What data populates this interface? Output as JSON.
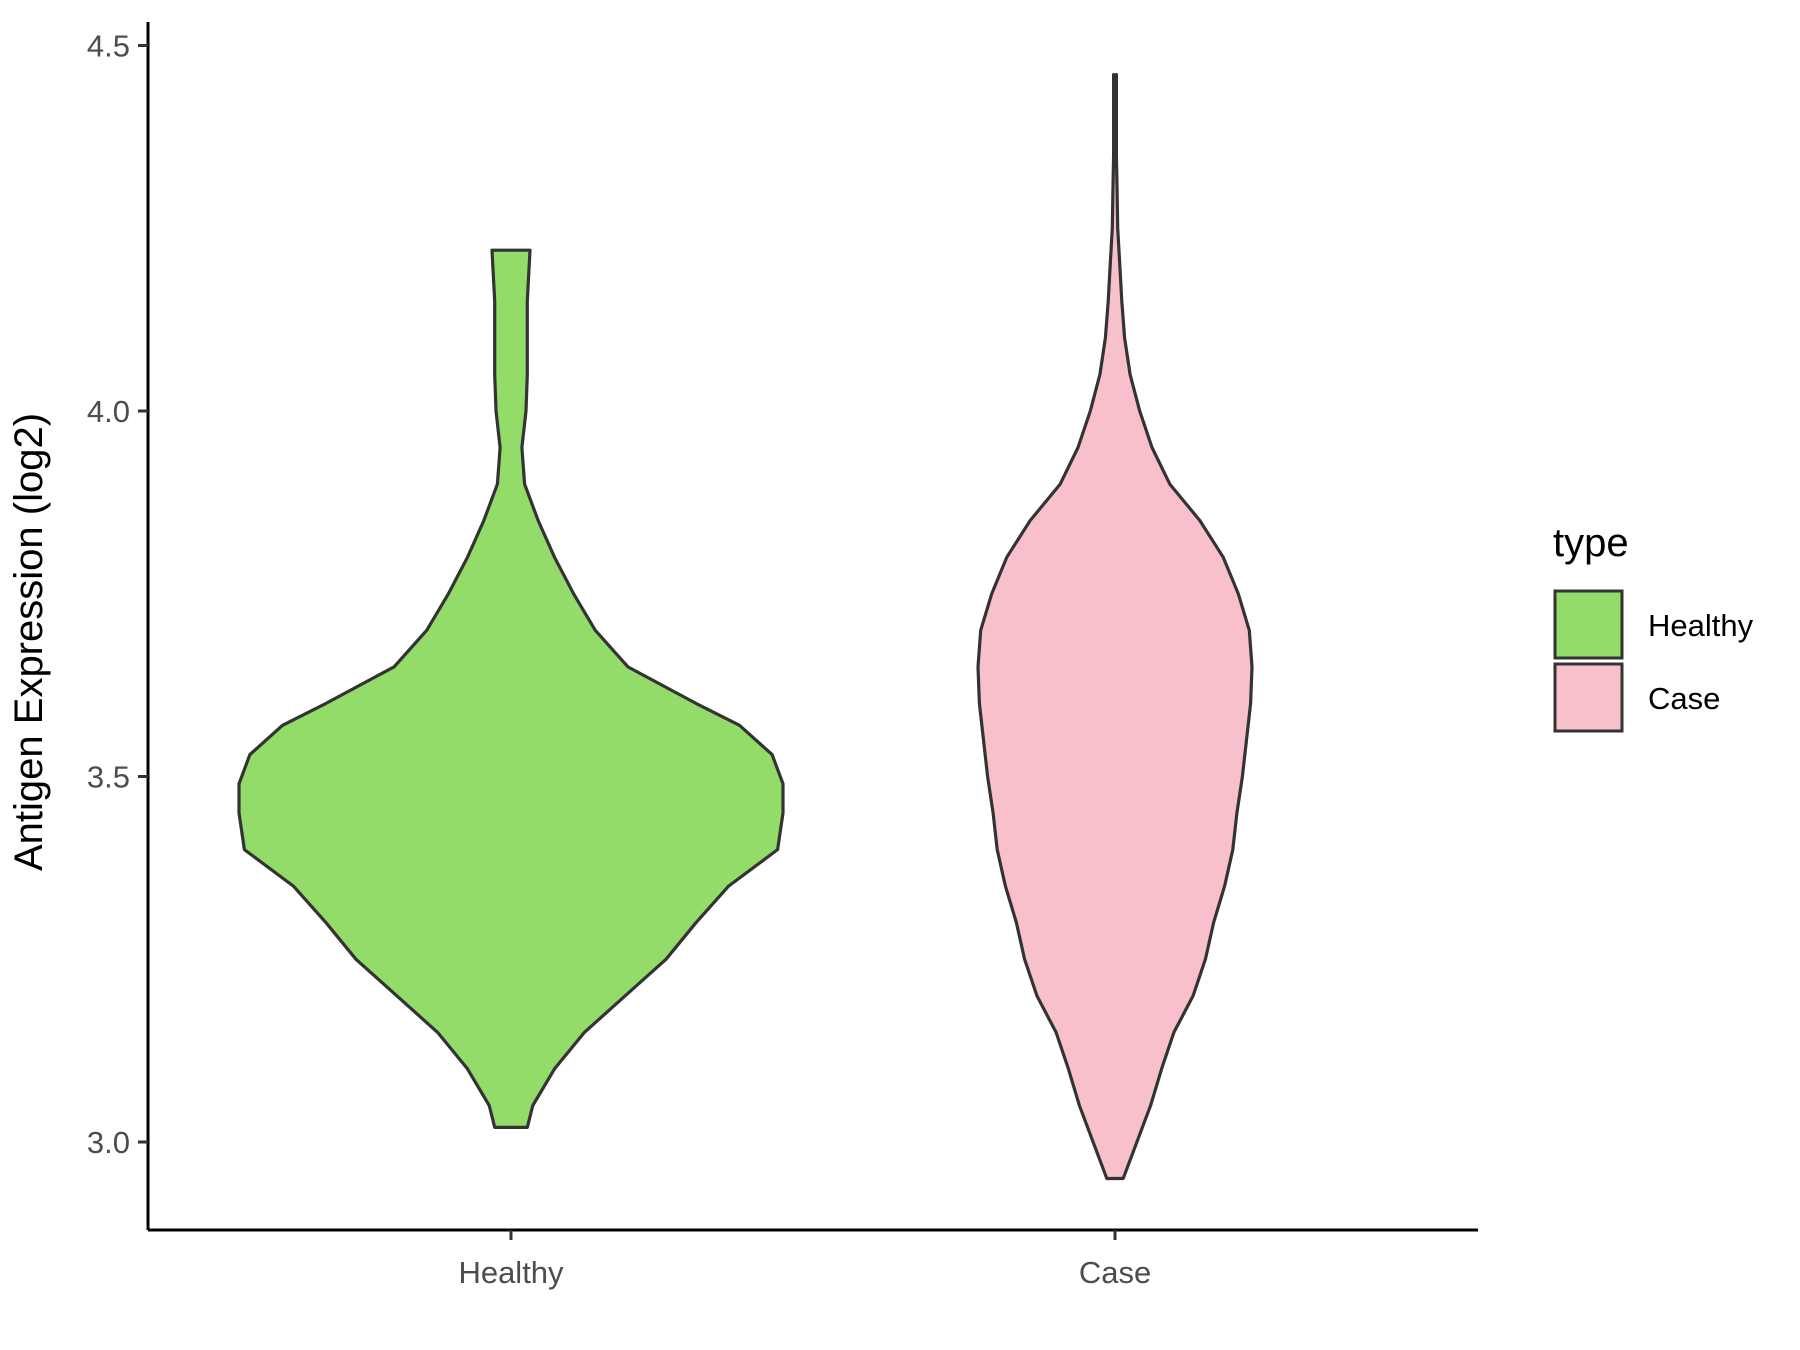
{
  "chart_data": {
    "type": "violin",
    "ylabel": "Antigen Expression (log2)",
    "xlabel": "",
    "categories": [
      "Healthy",
      "Case"
    ],
    "y_ticks": [
      "3.0",
      "3.5",
      "4.0",
      "4.5"
    ],
    "ylim": [
      2.9,
      4.53
    ],
    "legend": {
      "title": "type",
      "placement": "right",
      "entries": [
        "Healthy",
        "Case"
      ]
    },
    "grid": false,
    "series": [
      {
        "name": "Healthy",
        "color": "#93dc6a",
        "min": 3.02,
        "max": 4.22,
        "density": [
          [
            3.02,
            0.06
          ],
          [
            3.05,
            0.08
          ],
          [
            3.1,
            0.16
          ],
          [
            3.15,
            0.27
          ],
          [
            3.2,
            0.42
          ],
          [
            3.25,
            0.57
          ],
          [
            3.3,
            0.68
          ],
          [
            3.35,
            0.8
          ],
          [
            3.4,
            0.98
          ],
          [
            3.45,
            1.0
          ],
          [
            3.49,
            1.0
          ],
          [
            3.53,
            0.96
          ],
          [
            3.57,
            0.84
          ],
          [
            3.6,
            0.68
          ],
          [
            3.65,
            0.43
          ],
          [
            3.7,
            0.31
          ],
          [
            3.75,
            0.23
          ],
          [
            3.8,
            0.16
          ],
          [
            3.85,
            0.1
          ],
          [
            3.9,
            0.05
          ],
          [
            3.95,
            0.04
          ],
          [
            4.0,
            0.055
          ],
          [
            4.05,
            0.06
          ],
          [
            4.1,
            0.06
          ],
          [
            4.15,
            0.06
          ],
          [
            4.22,
            0.07
          ]
        ]
      },
      {
        "name": "Case",
        "color": "#f8c0cb",
        "min": 2.95,
        "max": 4.46,
        "density": [
          [
            2.95,
            0.06
          ],
          [
            3.0,
            0.16
          ],
          [
            3.05,
            0.26
          ],
          [
            3.1,
            0.34
          ],
          [
            3.15,
            0.43
          ],
          [
            3.2,
            0.57
          ],
          [
            3.25,
            0.66
          ],
          [
            3.3,
            0.72
          ],
          [
            3.35,
            0.8
          ],
          [
            3.4,
            0.86
          ],
          [
            3.45,
            0.89
          ],
          [
            3.5,
            0.93
          ],
          [
            3.55,
            0.96
          ],
          [
            3.6,
            0.99
          ],
          [
            3.65,
            1.0
          ],
          [
            3.7,
            0.98
          ],
          [
            3.75,
            0.9
          ],
          [
            3.8,
            0.79
          ],
          [
            3.85,
            0.62
          ],
          [
            3.9,
            0.4
          ],
          [
            3.95,
            0.27
          ],
          [
            4.0,
            0.18
          ],
          [
            4.05,
            0.11
          ],
          [
            4.1,
            0.07
          ],
          [
            4.15,
            0.05
          ],
          [
            4.2,
            0.035
          ],
          [
            4.25,
            0.02
          ],
          [
            4.3,
            0.015
          ],
          [
            4.35,
            0.01
          ],
          [
            4.46,
            0.01
          ]
        ]
      }
    ]
  }
}
